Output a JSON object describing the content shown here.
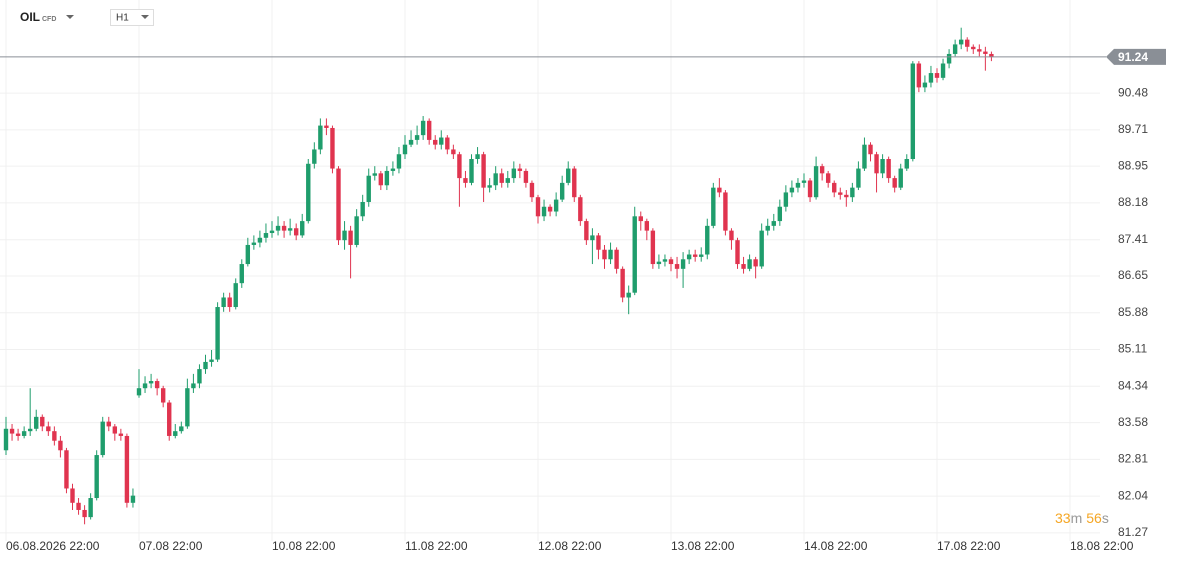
{
  "header": {
    "symbol": "OIL",
    "instrument_type": "CFD",
    "interval": "H1"
  },
  "countdown": {
    "minutes": "33",
    "minutes_unit": "m",
    "seconds": "56",
    "seconds_unit": "s"
  },
  "chart_data": {
    "type": "candlestick",
    "up_color": "#1f9d6c",
    "down_color": "#e0344f",
    "grid": true,
    "last_price": 91.24,
    "last_price_color": "#8a8f96",
    "ylim": [
      81.1,
      92.43
    ],
    "yticks": [
      81.27,
      82.04,
      82.81,
      83.58,
      84.34,
      85.11,
      85.88,
      86.65,
      87.41,
      88.18,
      88.95,
      89.71,
      90.48
    ],
    "categories": [
      "06.08.2026 22:00",
      null,
      null,
      null,
      null,
      null,
      null,
      null,
      null,
      null,
      null,
      null,
      null,
      null,
      null,
      null,
      null,
      null,
      null,
      null,
      null,
      null,
      "07.08 22:00",
      null,
      null,
      null,
      null,
      null,
      null,
      null,
      null,
      null,
      null,
      null,
      null,
      null,
      null,
      null,
      null,
      null,
      null,
      null,
      null,
      null,
      "10.08 22:00",
      null,
      null,
      null,
      null,
      null,
      null,
      null,
      null,
      null,
      null,
      null,
      null,
      null,
      null,
      null,
      null,
      null,
      null,
      null,
      null,
      null,
      "11.08 22:00",
      null,
      null,
      null,
      null,
      null,
      null,
      null,
      null,
      null,
      null,
      null,
      null,
      null,
      null,
      null,
      null,
      null,
      null,
      null,
      null,
      null,
      "12.08 22:00",
      null,
      null,
      null,
      null,
      null,
      null,
      null,
      null,
      null,
      null,
      null,
      null,
      null,
      null,
      null,
      null,
      null,
      null,
      null,
      null,
      null,
      "13.08 22:00",
      null,
      null,
      null,
      null,
      null,
      null,
      null,
      null,
      null,
      null,
      null,
      null,
      null,
      null,
      null,
      null,
      null,
      null,
      null,
      null,
      null,
      "14.08 22:00",
      null,
      null,
      null,
      null,
      null,
      null,
      null,
      null,
      null,
      null,
      null,
      null,
      null,
      null,
      null,
      null,
      null,
      null,
      null,
      null,
      null,
      "17.08 22:00",
      null,
      null,
      null,
      null,
      null,
      null,
      null,
      null,
      null,
      null,
      null,
      null,
      null,
      null,
      null,
      null,
      null,
      null,
      null,
      null,
      null,
      "18.08 22:00"
    ],
    "open": [
      83.0,
      83.45,
      83.35,
      83.3,
      83.4,
      83.45,
      83.7,
      83.5,
      83.4,
      83.2,
      83.0,
      82.2,
      81.9,
      81.75,
      81.6,
      82.0,
      82.9,
      83.6,
      83.5,
      83.35,
      83.3,
      81.9,
      84.15,
      84.3,
      84.4,
      84.45,
      84.3,
      84.0,
      83.3,
      83.4,
      83.5,
      84.3,
      84.4,
      84.7,
      84.85,
      84.9,
      86.0,
      86.2,
      86.0,
      86.5,
      86.9,
      87.3,
      87.35,
      87.45,
      87.55,
      87.6,
      87.7,
      87.6,
      87.65,
      87.5,
      87.8,
      89.0,
      89.3,
      89.8,
      89.75,
      88.9,
      87.4,
      87.6,
      87.3,
      87.9,
      88.2,
      88.75,
      88.8,
      88.55,
      88.85,
      88.9,
      89.2,
      89.4,
      89.5,
      89.6,
      89.9,
      89.5,
      89.4,
      89.55,
      89.3,
      89.2,
      88.7,
      88.6,
      89.1,
      89.2,
      88.5,
      88.55,
      88.8,
      88.6,
      88.7,
      88.9,
      88.85,
      88.6,
      88.3,
      87.9,
      88.1,
      88.0,
      88.25,
      88.6,
      88.9,
      88.3,
      87.8,
      87.4,
      87.5,
      87.2,
      87.0,
      87.2,
      86.8,
      86.2,
      86.3,
      87.9,
      87.8,
      87.6,
      86.9,
      86.95,
      87.0,
      86.9,
      86.8,
      87.0,
      87.1,
      87.05,
      87.1,
      87.7,
      88.5,
      88.4,
      87.6,
      87.4,
      86.9,
      86.8,
      87.0,
      86.85,
      87.6,
      87.7,
      87.8,
      88.1,
      88.4,
      88.5,
      88.6,
      88.65,
      88.3,
      88.95,
      88.8,
      88.6,
      88.4,
      88.35,
      88.3,
      88.5,
      88.9,
      89.4,
      89.2,
      88.8,
      89.1,
      88.7,
      88.5,
      88.9,
      89.1,
      91.1,
      90.6,
      90.7,
      90.9,
      90.8,
      91.1,
      91.3,
      91.5,
      91.6,
      91.45,
      91.4,
      91.35,
      91.3,
      null,
      null,
      null,
      null,
      null,
      null,
      null,
      null,
      null,
      null,
      null,
      null,
      null
    ],
    "high": [
      83.7,
      83.55,
      83.45,
      83.5,
      84.3,
      83.85,
      83.75,
      83.6,
      83.5,
      83.3,
      83.05,
      82.3,
      82.0,
      81.85,
      82.1,
      83.0,
      83.7,
      83.7,
      83.55,
      83.45,
      83.35,
      82.2,
      84.7,
      84.55,
      84.6,
      84.5,
      84.35,
      84.05,
      83.55,
      83.6,
      84.5,
      84.6,
      84.8,
      85.0,
      85.1,
      86.1,
      86.3,
      86.3,
      86.6,
      87.0,
      87.45,
      87.5,
      87.6,
      87.75,
      87.8,
      87.9,
      87.8,
      87.85,
      87.75,
      87.95,
      89.1,
      89.45,
      89.95,
      89.95,
      89.8,
      88.95,
      87.8,
      87.7,
      88.05,
      88.35,
      88.9,
      88.95,
      88.85,
      88.95,
      89.05,
      89.35,
      89.6,
      89.7,
      89.8,
      90.0,
      89.95,
      89.6,
      89.7,
      89.6,
      89.4,
      89.25,
      88.85,
      89.2,
      89.35,
      89.25,
      88.7,
      88.95,
      88.9,
      88.85,
      89.05,
      89.0,
      88.9,
      88.65,
      88.35,
      88.25,
      88.15,
      88.4,
      88.75,
      89.05,
      88.95,
      88.35,
      87.85,
      87.65,
      87.55,
      87.3,
      87.35,
      87.25,
      86.85,
      86.45,
      88.1,
      88.0,
      87.85,
      87.65,
      87.1,
      87.1,
      87.05,
      87.05,
      87.15,
      87.2,
      87.2,
      87.25,
      87.85,
      88.6,
      88.7,
      88.45,
      87.65,
      87.45,
      87.05,
      87.1,
      87.05,
      87.75,
      87.85,
      87.95,
      88.25,
      88.55,
      88.65,
      88.7,
      88.8,
      88.7,
      89.15,
      89.0,
      88.85,
      88.65,
      88.5,
      88.45,
      88.6,
      89.05,
      89.55,
      89.45,
      89.25,
      89.2,
      89.15,
      88.75,
      89.0,
      89.2,
      91.15,
      91.15,
      90.85,
      91.05,
      91.0,
      91.2,
      91.4,
      91.6,
      91.85,
      91.65,
      91.5,
      91.5,
      91.45,
      91.35,
      null,
      null,
      null,
      null,
      null,
      null,
      null,
      null,
      null,
      null,
      null,
      null,
      null
    ],
    "low": [
      82.9,
      83.2,
      83.2,
      83.25,
      83.3,
      83.4,
      83.4,
      83.3,
      83.1,
      82.85,
      82.1,
      81.75,
      81.65,
      81.45,
      81.55,
      81.95,
      82.85,
      83.4,
      83.2,
      83.2,
      81.8,
      81.8,
      84.1,
      84.2,
      84.3,
      84.15,
      83.9,
      83.2,
      83.25,
      83.35,
      83.45,
      84.2,
      84.3,
      84.6,
      84.75,
      84.85,
      85.9,
      85.9,
      85.95,
      86.4,
      86.85,
      87.2,
      87.25,
      87.35,
      87.45,
      87.5,
      87.45,
      87.5,
      87.4,
      87.45,
      87.75,
      88.9,
      89.2,
      89.6,
      88.8,
      87.3,
      87.2,
      86.6,
      87.25,
      87.8,
      88.1,
      88.65,
      88.45,
      88.45,
      88.75,
      88.8,
      89.1,
      89.35,
      89.4,
      89.5,
      89.4,
      89.3,
      89.3,
      89.2,
      89.1,
      88.1,
      88.5,
      88.55,
      89.0,
      88.2,
      88.4,
      88.45,
      88.5,
      88.5,
      88.6,
      88.7,
      88.5,
      88.2,
      87.75,
      87.8,
      87.9,
      87.9,
      88.2,
      88.55,
      88.2,
      87.7,
      87.3,
      86.9,
      87.0,
      86.8,
      86.9,
      86.7,
      86.1,
      85.85,
      86.25,
      87.6,
      87.4,
      86.8,
      86.8,
      86.85,
      86.75,
      86.6,
      86.4,
      86.9,
      86.95,
      86.95,
      87.0,
      87.65,
      88.3,
      87.5,
      87.2,
      86.8,
      86.7,
      86.75,
      86.6,
      86.8,
      87.5,
      87.6,
      87.7,
      88.0,
      88.3,
      88.4,
      88.5,
      88.2,
      88.25,
      88.65,
      88.5,
      88.3,
      88.25,
      88.1,
      88.2,
      88.45,
      88.85,
      89.05,
      88.4,
      88.7,
      88.6,
      88.4,
      88.45,
      88.85,
      89.05,
      90.5,
      90.5,
      90.6,
      90.7,
      90.75,
      91.0,
      91.25,
      91.4,
      91.35,
      91.3,
      91.25,
      90.95,
      91.15,
      null,
      null,
      null,
      null,
      null,
      null,
      null,
      null,
      null,
      null,
      null,
      null,
      null
    ],
    "close": [
      83.45,
      83.35,
      83.3,
      83.4,
      83.45,
      83.7,
      83.5,
      83.4,
      83.2,
      83.0,
      82.2,
      81.9,
      81.75,
      81.6,
      82.0,
      82.9,
      83.6,
      83.5,
      83.35,
      83.3,
      81.9,
      82.05,
      84.3,
      84.4,
      84.45,
      84.3,
      84.0,
      83.3,
      83.4,
      83.5,
      84.3,
      84.4,
      84.7,
      84.85,
      84.9,
      86.0,
      86.2,
      86.0,
      86.5,
      86.9,
      87.3,
      87.35,
      87.45,
      87.55,
      87.6,
      87.7,
      87.6,
      87.65,
      87.5,
      87.8,
      89.0,
      89.3,
      89.8,
      89.75,
      88.9,
      87.4,
      87.6,
      87.3,
      87.9,
      88.2,
      88.75,
      88.8,
      88.55,
      88.85,
      88.9,
      89.2,
      89.4,
      89.5,
      89.6,
      89.9,
      89.5,
      89.4,
      89.55,
      89.3,
      89.2,
      88.7,
      88.6,
      89.1,
      89.2,
      88.5,
      88.55,
      88.8,
      88.6,
      88.7,
      88.9,
      88.85,
      88.6,
      88.3,
      87.9,
      88.1,
      88.0,
      88.25,
      88.6,
      88.9,
      88.3,
      87.8,
      87.4,
      87.5,
      87.2,
      87.0,
      87.2,
      86.8,
      86.2,
      86.3,
      87.9,
      87.8,
      87.6,
      86.9,
      86.95,
      87.0,
      86.9,
      86.8,
      87.0,
      87.1,
      87.05,
      87.1,
      87.7,
      88.5,
      88.4,
      87.6,
      87.4,
      86.9,
      86.8,
      87.0,
      86.85,
      87.6,
      87.7,
      87.8,
      88.1,
      88.4,
      88.5,
      88.6,
      88.65,
      88.3,
      88.95,
      88.8,
      88.6,
      88.4,
      88.35,
      88.3,
      88.5,
      88.9,
      89.4,
      89.2,
      88.8,
      89.1,
      88.7,
      88.5,
      88.9,
      89.1,
      91.1,
      90.6,
      90.7,
      90.9,
      90.8,
      91.1,
      91.3,
      91.5,
      91.6,
      91.45,
      91.4,
      91.35,
      91.3,
      91.24,
      null,
      null,
      null,
      null,
      null,
      null,
      null,
      null,
      null,
      null,
      null,
      null,
      null
    ]
  }
}
